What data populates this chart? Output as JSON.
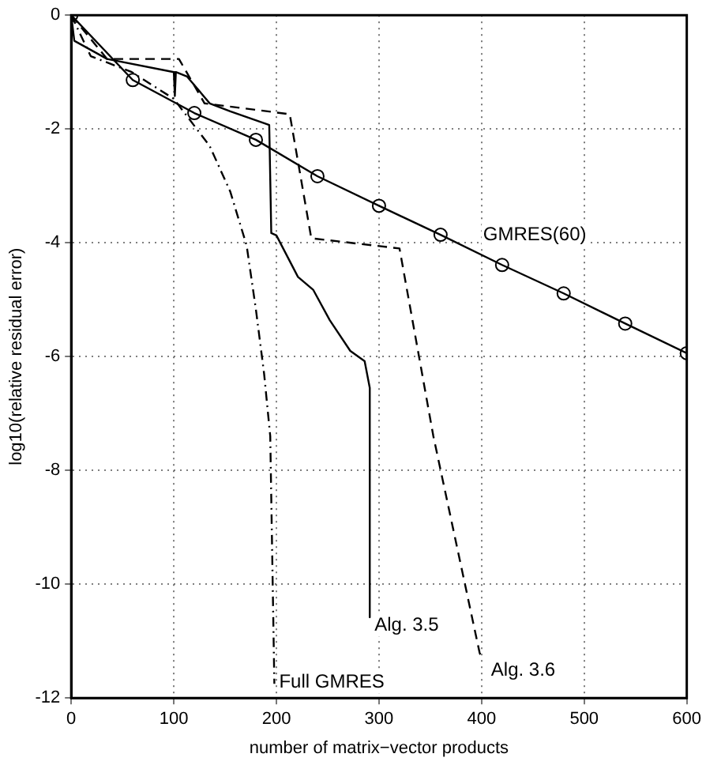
{
  "chart_data": {
    "type": "line",
    "xlabel": "number of matrix−vector products",
    "ylabel": "log10(relative residual error)",
    "xlim": [
      0,
      600
    ],
    "ylim": [
      -12,
      0
    ],
    "xticks": [
      0,
      100,
      200,
      300,
      400,
      500,
      600
    ],
    "yticks": [
      -12,
      -10,
      -8,
      -6,
      -4,
      -2,
      0
    ],
    "grid": true,
    "legend": false,
    "series": [
      {
        "name": "GMRES(60)",
        "color": "#000000",
        "marker": "circle",
        "line_style": "solid",
        "x": [
          0,
          60,
          120,
          180,
          240,
          300,
          360,
          420,
          480,
          540,
          600
        ],
        "values": [
          0,
          -1.14,
          -1.72,
          -2.19,
          -2.83,
          -3.35,
          -3.86,
          -4.39,
          -4.89,
          -5.42,
          -5.94
        ]
      },
      {
        "name": "Alg. 3.5",
        "color": "#000000",
        "marker": "none",
        "line_style": "solid",
        "x": [
          0,
          3,
          35,
          100,
          101,
          102,
          113,
          135,
          155,
          193,
          195,
          200,
          221,
          236,
          252,
          272,
          286,
          291,
          291
        ],
        "values": [
          0,
          -0.45,
          -0.77,
          -1.0,
          -1.42,
          -1.0,
          -1.08,
          -1.55,
          -1.69,
          -1.93,
          -3.83,
          -3.87,
          -4.6,
          -4.83,
          -5.36,
          -5.9,
          -6.08,
          -6.55,
          -10.58
        ]
      },
      {
        "name": "Full GMRES",
        "color": "#000000",
        "marker": "none",
        "line_style": "dashdot",
        "x": [
          0,
          19,
          59,
          100,
          135,
          155,
          171,
          180,
          188,
          194,
          198
        ],
        "values": [
          0,
          -0.72,
          -1.0,
          -1.47,
          -2.3,
          -3.1,
          -4.05,
          -5.17,
          -6.3,
          -7.4,
          -11.75
        ]
      },
      {
        "name": "Alg. 3.6",
        "color": "#000000",
        "marker": "none",
        "line_style": "dashed",
        "x": [
          0,
          35,
          105,
          130,
          213,
          234,
          320,
          353,
          398,
          400
        ],
        "values": [
          0,
          -0.77,
          -0.77,
          -1.55,
          -1.74,
          -3.92,
          -4.1,
          -7.4,
          -11.2,
          -11.3
        ]
      }
    ]
  }
}
